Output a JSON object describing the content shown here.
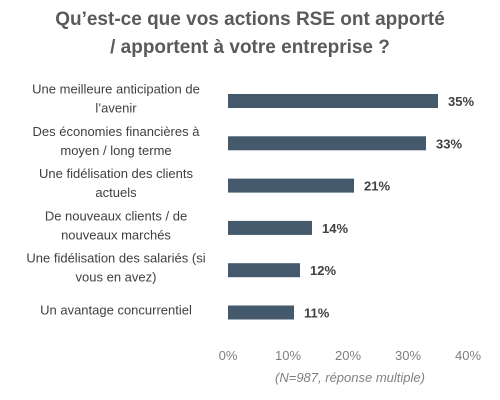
{
  "chart_data": {
    "type": "bar",
    "orientation": "horizontal",
    "title_lines": [
      "Qu’est-ce que vos actions RSE ont apporté",
      "/ apportent à votre entreprise ?"
    ],
    "categories": [
      "Une meilleure anticipation de l’avenir",
      "Des économies financières à moyen / long terme",
      "Une fidélisation des clients actuels",
      "De nouveaux clients / de nouveaux marchés",
      "Une fidélisation des salariés (si vous en avez)",
      "Un avantage concurrentiel"
    ],
    "category_label_lines": [
      [
        "Une meilleure anticipation de",
        "l’avenir"
      ],
      [
        "Des économies financières à",
        "moyen / long terme"
      ],
      [
        "Une fidélisation des clients",
        "actuels"
      ],
      [
        "De nouveaux clients / de",
        "nouveaux marchés"
      ],
      [
        "Une fidélisation des salariés (si",
        "vous en avez)"
      ],
      [
        "Un avantage concurrentiel"
      ]
    ],
    "values": [
      35,
      33,
      21,
      14,
      12,
      11
    ],
    "value_labels": [
      "35%",
      "33%",
      "21%",
      "14%",
      "12%",
      "11%"
    ],
    "xlim": [
      0,
      40
    ],
    "x_ticks": [
      0,
      10,
      20,
      30,
      40
    ],
    "x_tick_labels": [
      "0%",
      "10%",
      "20%",
      "30%",
      "40%"
    ],
    "bar_color": "#44596b",
    "grid": false,
    "footnote": "(N=987, réponse multiple)"
  }
}
